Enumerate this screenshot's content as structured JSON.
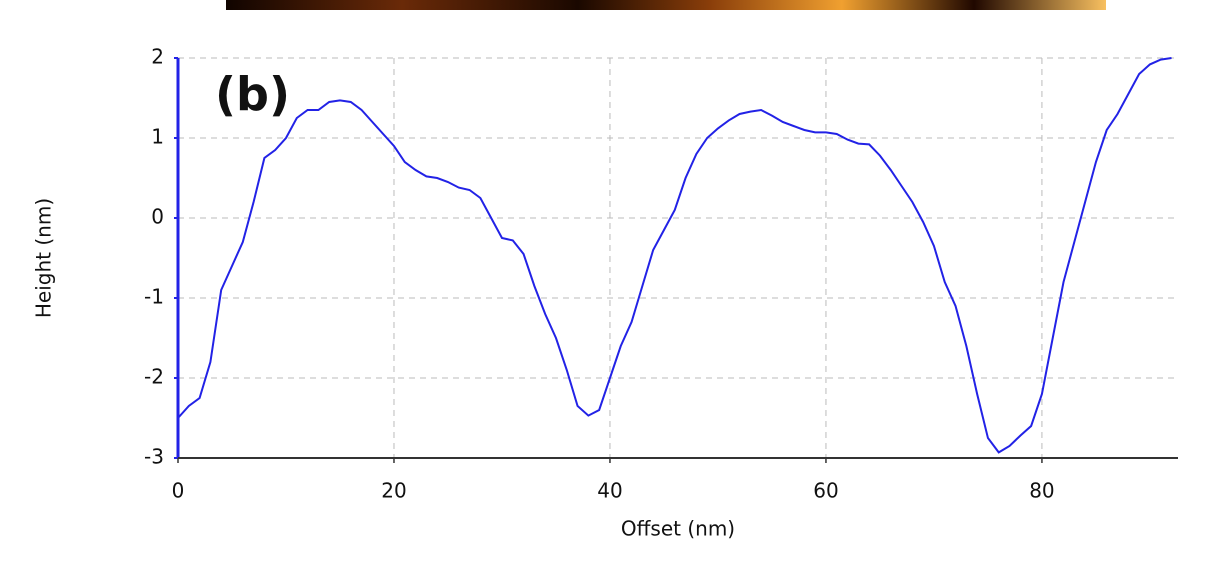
{
  "chart_data": {
    "type": "line",
    "annotation": "(b)",
    "xlabel": "Offset (nm)",
    "ylabel": "Height (nm)",
    "x": [
      0,
      1,
      2,
      3,
      4,
      5,
      6,
      7,
      8,
      9,
      10,
      11,
      12,
      13,
      14,
      15,
      16,
      17,
      18,
      19,
      20,
      21,
      22,
      23,
      24,
      25,
      26,
      27,
      28,
      29,
      30,
      31,
      32,
      33,
      34,
      35,
      36,
      37,
      38,
      39,
      40,
      41,
      42,
      43,
      44,
      45,
      46,
      47,
      48,
      49,
      50,
      51,
      52,
      53,
      54,
      55,
      56,
      57,
      58,
      59,
      60,
      61,
      62,
      63,
      64,
      65,
      66,
      67,
      68,
      69,
      70,
      71,
      72,
      73,
      74,
      75,
      76,
      77,
      78,
      79,
      80,
      81,
      82,
      83,
      84,
      85,
      86,
      87,
      88,
      89,
      90,
      91,
      92
    ],
    "series": [
      {
        "color": "#2222e6",
        "values": [
          -2.5,
          -2.35,
          -2.25,
          -1.8,
          -0.9,
          -0.6,
          -0.3,
          0.2,
          0.75,
          0.85,
          1.0,
          1.25,
          1.35,
          1.35,
          1.45,
          1.47,
          1.45,
          1.35,
          1.2,
          1.05,
          0.9,
          0.7,
          0.6,
          0.52,
          0.5,
          0.45,
          0.38,
          0.35,
          0.25,
          0.0,
          -0.25,
          -0.28,
          -0.45,
          -0.85,
          -1.2,
          -1.5,
          -1.9,
          -2.35,
          -2.47,
          -2.4,
          -2.0,
          -1.6,
          -1.3,
          -0.85,
          -0.4,
          -0.15,
          0.1,
          0.5,
          0.8,
          1.0,
          1.12,
          1.22,
          1.3,
          1.33,
          1.35,
          1.28,
          1.2,
          1.15,
          1.1,
          1.07,
          1.07,
          1.05,
          0.98,
          0.93,
          0.92,
          0.78,
          0.6,
          0.4,
          0.2,
          -0.05,
          -0.35,
          -0.8,
          -1.1,
          -1.6,
          -2.2,
          -2.75,
          -2.93,
          -2.85,
          -2.72,
          -2.6,
          -2.2,
          -1.5,
          -0.8,
          -0.3,
          0.2,
          0.7,
          1.1,
          1.3,
          1.55,
          1.8,
          1.92,
          1.98,
          2.0
        ]
      }
    ],
    "xlim": [
      0,
      92.6
    ],
    "xticks": [
      0,
      20,
      40,
      60,
      80
    ],
    "ylim": [
      -3,
      2
    ],
    "yticks": [
      -3,
      -2,
      -1,
      0,
      1,
      2
    ],
    "grid": true
  }
}
